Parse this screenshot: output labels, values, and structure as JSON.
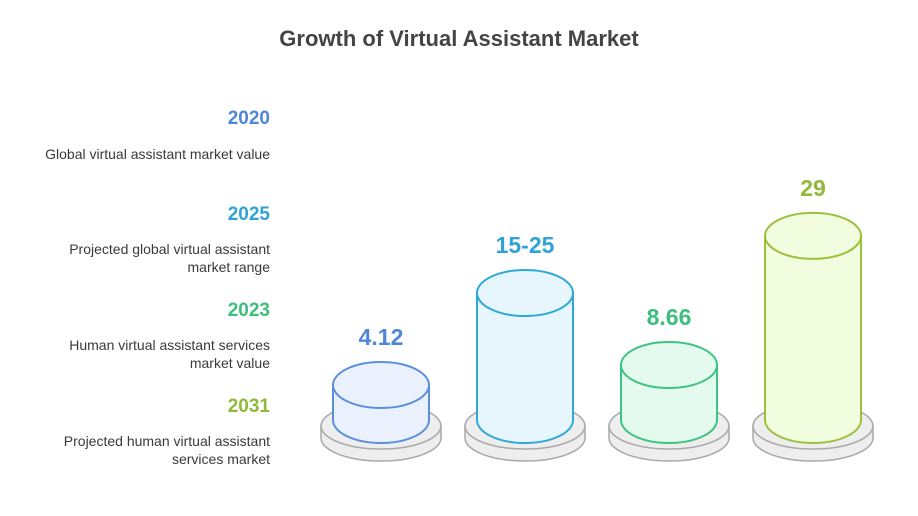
{
  "title": "Growth of Virtual Assistant Market",
  "legend": [
    {
      "year": "2020",
      "description": "Global virtual assistant market value",
      "color": "#4e86d9"
    },
    {
      "year": "2025",
      "description": "Projected global virtual assistant market range",
      "color": "#2fa3d6"
    },
    {
      "year": "2023",
      "description": "Human virtual assistant services market value",
      "color": "#3dbf7c"
    },
    {
      "year": "2031",
      "description": "Projected human virtual assistant services market",
      "color": "#92b83a"
    }
  ],
  "chart_data": {
    "type": "bar",
    "categories": [
      "2020",
      "2025",
      "2023",
      "2031"
    ],
    "values": [
      4.12,
      20,
      8.66,
      29
    ],
    "labels": [
      "4.12",
      "15-25",
      "8.66",
      "29"
    ],
    "colors": {
      "stroke": [
        "#5a8fe0",
        "#2ea8d8",
        "#3cc480",
        "#9cc23c"
      ],
      "fill": [
        "#eaf1fc",
        "#e6f6fc",
        "#e4faee",
        "#f2fde0"
      ],
      "label": [
        "#4e86d9",
        "#2fa3d6",
        "#3dbf7c",
        "#92b83a"
      ],
      "base_fill": "#eeeeee",
      "base_stroke": "#a8a8a8"
    }
  }
}
